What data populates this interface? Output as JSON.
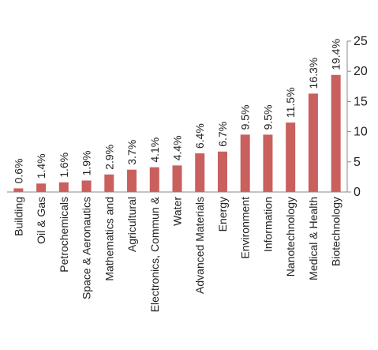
{
  "chart_data": {
    "type": "bar",
    "categories": [
      "Building",
      "Oil & Gas",
      "Petrochemicals",
      "Space & Aeronautics",
      "Mathematics and",
      "Agricultural",
      "Electronics, Commun &",
      "Water",
      "Advanced Materials",
      "Energy",
      "Environment",
      "Information",
      "Nanotechnology",
      "Medical & Health",
      "Biotechnology"
    ],
    "values": [
      0.6,
      1.4,
      1.6,
      1.9,
      2.9,
      3.7,
      4.1,
      4.4,
      6.4,
      6.7,
      9.5,
      9.5,
      11.5,
      16.3,
      19.4
    ],
    "data_labels": [
      "0.6%",
      "1.4%",
      "1.6%",
      "1.9%",
      "2.9%",
      "3.7%",
      "4.1%",
      "4.4%",
      "6.4%",
      "6.7%",
      "9.5%",
      "9.5%",
      "11.5%",
      "16.3%",
      "19.4%"
    ],
    "y_ticks": [
      "0",
      "5",
      "10",
      "15",
      "20",
      "25"
    ],
    "ylim": [
      0,
      25
    ],
    "y_axis_position": "right",
    "grid": false,
    "bar_color": "#c9605e"
  }
}
